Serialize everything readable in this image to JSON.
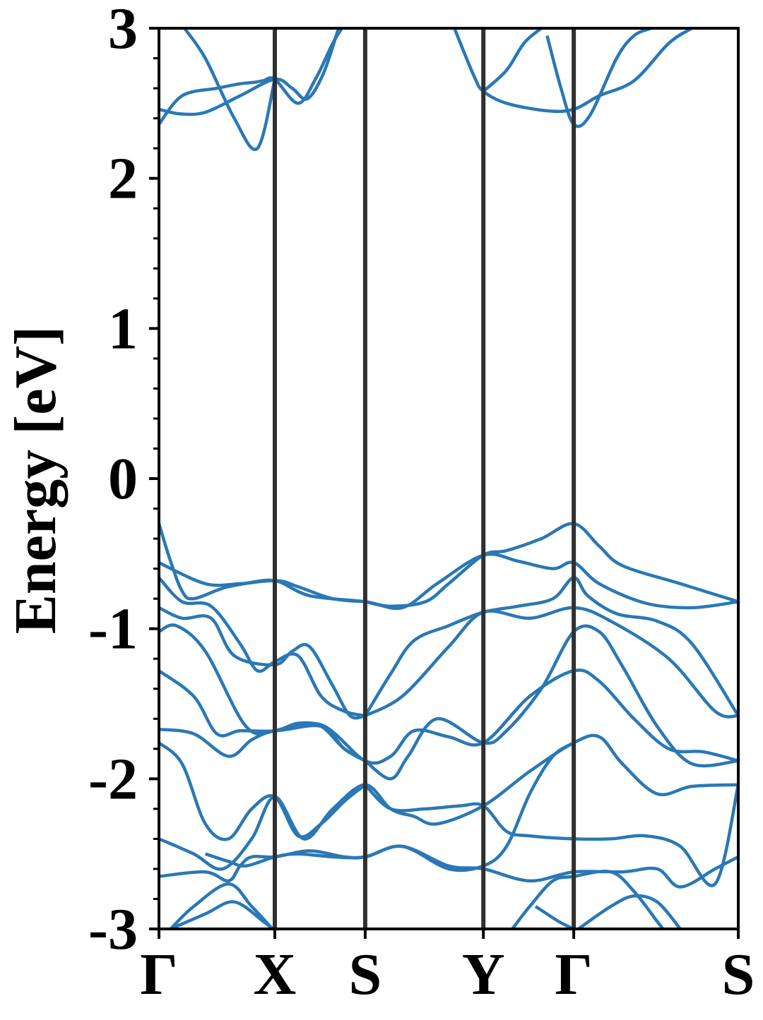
{
  "chart_data": {
    "type": "line",
    "ylabel": "Energy [eV]",
    "xlabel": "",
    "ylim": [
      -3,
      3
    ],
    "yticks": [
      3,
      2,
      1,
      0,
      -1,
      -2,
      -3
    ],
    "ytick_labels": [
      "3",
      "2",
      "1",
      "0",
      "-1",
      "-2",
      "-3"
    ],
    "yminor_step": 0.2,
    "xlim": [
      0,
      5
    ],
    "kpoints": [
      {
        "label": "Γ",
        "x": 0
      },
      {
        "label": "X",
        "x": 1
      },
      {
        "label": "S",
        "x": 1.78
      },
      {
        "label": "Y",
        "x": 2.8
      },
      {
        "label": "Γ",
        "x": 3.58
      },
      {
        "label": "S",
        "x": 5
      }
    ],
    "grid": false,
    "colors": {
      "bands": "#2a78b5",
      "kpath_lines": "#303030",
      "axes": "#000000"
    },
    "bands": [
      [
        [
          0,
          2.36
        ],
        [
          0.2,
          2.55
        ],
        [
          0.5,
          2.6
        ],
        [
          0.7,
          2.63
        ],
        [
          0.82,
          2.64
        ],
        [
          0.9,
          2.65
        ],
        [
          1,
          2.66
        ],
        [
          1.2,
          2.5
        ],
        [
          1.35,
          2.66
        ],
        [
          1.5,
          2.9
        ],
        [
          1.58,
          3.0
        ]
      ],
      [
        [
          0,
          2.46
        ],
        [
          0.18,
          2.43
        ],
        [
          0.4,
          2.44
        ],
        [
          0.7,
          2.55
        ],
        [
          1,
          2.66
        ],
        [
          1.15,
          2.6
        ],
        [
          1.28,
          2.53
        ],
        [
          1.42,
          2.7
        ],
        [
          1.55,
          3.0
        ]
      ],
      [
        [
          0.22,
          3.0
        ],
        [
          0.4,
          2.8
        ],
        [
          0.65,
          2.4
        ],
        [
          0.85,
          2.2
        ],
        [
          1,
          2.66
        ]
      ],
      [
        [
          2.55,
          3.0
        ],
        [
          2.72,
          2.68
        ],
        [
          2.8,
          2.58
        ],
        [
          3.0,
          2.5
        ],
        [
          3.35,
          2.45
        ],
        [
          3.58,
          2.46
        ],
        [
          3.8,
          2.55
        ],
        [
          4.1,
          2.65
        ],
        [
          4.4,
          2.9
        ],
        [
          4.6,
          3.0
        ]
      ],
      [
        [
          2.8,
          2.58
        ],
        [
          3.0,
          2.72
        ],
        [
          3.15,
          2.9
        ],
        [
          3.3,
          3.0
        ]
      ],
      [
        [
          3.35,
          2.95
        ],
        [
          3.47,
          2.6
        ],
        [
          3.58,
          2.36
        ],
        [
          3.72,
          2.42
        ],
        [
          3.95,
          2.8
        ],
        [
          4.1,
          2.95
        ],
        [
          4.25,
          3.0
        ]
      ],
      [
        [
          0,
          -0.3
        ],
        [
          0.1,
          -0.55
        ],
        [
          0.2,
          -0.75
        ],
        [
          0.3,
          -0.8
        ],
        [
          0.6,
          -0.72
        ],
        [
          1,
          -0.68
        ],
        [
          1.2,
          -0.72
        ],
        [
          1.5,
          -0.8
        ],
        [
          1.78,
          -0.82
        ]
      ],
      [
        [
          0,
          -0.56
        ],
        [
          0.4,
          -0.7
        ],
        [
          0.7,
          -0.7
        ],
        [
          1,
          -0.68
        ],
        [
          1.3,
          -0.78
        ],
        [
          1.78,
          -0.82
        ],
        [
          2.1,
          -0.86
        ],
        [
          2.4,
          -0.7
        ],
        [
          2.8,
          -0.51
        ],
        [
          3.1,
          -0.55
        ],
        [
          3.4,
          -0.6
        ],
        [
          3.58,
          -0.56
        ],
        [
          3.8,
          -0.7
        ],
        [
          4.2,
          -0.83
        ],
        [
          4.6,
          -0.86
        ],
        [
          5,
          -0.82
        ]
      ],
      [
        [
          1.78,
          -0.82
        ],
        [
          2.0,
          -0.85
        ],
        [
          2.3,
          -0.82
        ],
        [
          2.5,
          -0.7
        ],
        [
          2.8,
          -0.51
        ],
        [
          3.0,
          -0.48
        ],
        [
          3.3,
          -0.4
        ],
        [
          3.58,
          -0.3
        ],
        [
          3.8,
          -0.45
        ],
        [
          4.0,
          -0.58
        ],
        [
          4.5,
          -0.7
        ],
        [
          5,
          -0.82
        ]
      ],
      [
        [
          0,
          -0.66
        ],
        [
          0.2,
          -0.82
        ],
        [
          0.45,
          -0.85
        ],
        [
          0.7,
          -1.1
        ],
        [
          0.85,
          -1.28
        ],
        [
          1,
          -1.22
        ],
        [
          1.2,
          -1.18
        ],
        [
          1.4,
          -1.45
        ],
        [
          1.6,
          -1.55
        ],
        [
          1.78,
          -1.58
        ]
      ],
      [
        [
          0,
          -0.86
        ],
        [
          0.2,
          -0.93
        ],
        [
          0.45,
          -0.93
        ],
        [
          0.65,
          -1.18
        ],
        [
          1,
          -1.24
        ],
        [
          1.15,
          -1.15
        ],
        [
          1.3,
          -1.12
        ],
        [
          1.5,
          -1.38
        ],
        [
          1.65,
          -1.58
        ],
        [
          1.78,
          -1.58
        ]
      ],
      [
        [
          0,
          -1.02
        ],
        [
          0.15,
          -0.98
        ],
        [
          0.4,
          -1.15
        ],
        [
          0.75,
          -1.65
        ],
        [
          1,
          -1.68
        ],
        [
          1.4,
          -1.65
        ],
        [
          1.6,
          -1.8
        ],
        [
          1.78,
          -1.88
        ]
      ],
      [
        [
          1.78,
          -1.58
        ],
        [
          2.0,
          -1.3
        ],
        [
          2.2,
          -1.08
        ],
        [
          2.5,
          -0.98
        ],
        [
          2.8,
          -0.89
        ],
        [
          3.1,
          -0.85
        ],
        [
          3.4,
          -0.8
        ],
        [
          3.58,
          -0.66
        ],
        [
          3.7,
          -0.78
        ],
        [
          3.95,
          -0.9
        ],
        [
          4.3,
          -0.95
        ],
        [
          4.6,
          -1.1
        ],
        [
          5,
          -1.58
        ]
      ],
      [
        [
          1.78,
          -1.58
        ],
        [
          2.1,
          -1.45
        ],
        [
          2.5,
          -1.12
        ],
        [
          2.8,
          -0.89
        ],
        [
          3.2,
          -0.93
        ],
        [
          3.58,
          -0.86
        ],
        [
          3.9,
          -0.95
        ],
        [
          4.4,
          -1.2
        ],
        [
          4.8,
          -1.55
        ],
        [
          5,
          -1.58
        ]
      ],
      [
        [
          0,
          -1.28
        ],
        [
          0.3,
          -1.45
        ],
        [
          0.5,
          -1.7
        ],
        [
          0.7,
          -1.68
        ],
        [
          1,
          -1.68
        ],
        [
          1.2,
          -1.63
        ],
        [
          1.4,
          -1.65
        ],
        [
          1.6,
          -1.8
        ],
        [
          1.78,
          -1.88
        ]
      ],
      [
        [
          0,
          -1.67
        ],
        [
          0.3,
          -1.7
        ],
        [
          0.6,
          -1.85
        ],
        [
          0.8,
          -1.74
        ],
        [
          1,
          -1.68
        ],
        [
          1.4,
          -1.64
        ],
        [
          1.78,
          -1.88
        ],
        [
          2.0,
          -1.85
        ],
        [
          2.2,
          -1.68
        ],
        [
          2.5,
          -1.72
        ],
        [
          2.8,
          -1.76
        ],
        [
          3.2,
          -1.45
        ],
        [
          3.58,
          -1.28
        ],
        [
          3.8,
          -1.35
        ],
        [
          4.1,
          -1.6
        ],
        [
          4.4,
          -1.8
        ],
        [
          4.7,
          -1.82
        ],
        [
          5,
          -1.88
        ]
      ],
      [
        [
          1.78,
          -1.88
        ],
        [
          2.0,
          -2.0
        ],
        [
          2.15,
          -1.85
        ],
        [
          2.4,
          -1.6
        ],
        [
          2.8,
          -1.76
        ],
        [
          3.0,
          -1.68
        ],
        [
          3.3,
          -1.4
        ],
        [
          3.58,
          -1.02
        ],
        [
          3.8,
          -1.02
        ],
        [
          4.0,
          -1.25
        ],
        [
          4.3,
          -1.65
        ],
        [
          4.6,
          -1.9
        ],
        [
          5,
          -1.88
        ]
      ],
      [
        [
          0,
          -1.76
        ],
        [
          0.2,
          -1.9
        ],
        [
          0.4,
          -2.3
        ],
        [
          0.6,
          -2.4
        ],
        [
          0.8,
          -2.2
        ],
        [
          1,
          -2.12
        ],
        [
          1.2,
          -2.38
        ],
        [
          1.4,
          -2.3
        ],
        [
          1.6,
          -2.15
        ],
        [
          1.78,
          -2.04
        ]
      ],
      [
        [
          0,
          -2.4
        ],
        [
          0.3,
          -2.5
        ],
        [
          0.55,
          -2.6
        ],
        [
          0.8,
          -2.4
        ],
        [
          1,
          -2.12
        ],
        [
          1.25,
          -2.4
        ],
        [
          1.5,
          -2.2
        ],
        [
          1.78,
          -2.04
        ],
        [
          2.0,
          -2.2
        ],
        [
          2.2,
          -2.25
        ],
        [
          2.4,
          -2.3
        ],
        [
          2.8,
          -2.18
        ],
        [
          3.2,
          -1.95
        ],
        [
          3.58,
          -1.76
        ],
        [
          3.8,
          -1.72
        ],
        [
          4.0,
          -1.9
        ],
        [
          4.3,
          -2.1
        ],
        [
          4.6,
          -2.05
        ],
        [
          5,
          -2.04
        ]
      ],
      [
        [
          1.78,
          -2.04
        ],
        [
          2.0,
          -2.2
        ],
        [
          2.3,
          -2.2
        ],
        [
          2.6,
          -2.18
        ],
        [
          2.8,
          -2.18
        ],
        [
          3.0,
          -2.35
        ],
        [
          3.2,
          -2.38
        ],
        [
          3.58,
          -2.4
        ],
        [
          3.9,
          -2.4
        ],
        [
          4.2,
          -2.38
        ],
        [
          4.5,
          -2.45
        ],
        [
          4.8,
          -2.7
        ],
        [
          5,
          -2.04
        ]
      ],
      [
        [
          0,
          -2.65
        ],
        [
          0.4,
          -2.62
        ],
        [
          0.6,
          -2.68
        ],
        [
          0.7,
          -2.58
        ],
        [
          0.8,
          -2.52
        ],
        [
          1,
          -2.52
        ],
        [
          1.3,
          -2.48
        ],
        [
          1.6,
          -2.52
        ],
        [
          1.78,
          -2.52
        ],
        [
          2.1,
          -2.45
        ],
        [
          2.5,
          -2.58
        ],
        [
          2.8,
          -2.6
        ],
        [
          3.2,
          -2.68
        ],
        [
          3.58,
          -2.62
        ],
        [
          4.0,
          -2.62
        ],
        [
          4.3,
          -2.6
        ],
        [
          4.5,
          -2.72
        ],
        [
          4.8,
          -2.6
        ],
        [
          5,
          -2.52
        ]
      ],
      [
        [
          0.4,
          -2.5
        ],
        [
          0.6,
          -2.55
        ],
        [
          0.75,
          -2.58
        ],
        [
          1,
          -2.52
        ],
        [
          1.2,
          -2.5
        ],
        [
          1.5,
          -2.52
        ],
        [
          1.78,
          -2.52
        ],
        [
          2.1,
          -2.45
        ],
        [
          2.5,
          -2.6
        ],
        [
          2.8,
          -2.58
        ],
        [
          3.0,
          -2.45
        ],
        [
          3.2,
          -2.1
        ],
        [
          3.4,
          -1.85
        ],
        [
          3.58,
          -1.76
        ]
      ],
      [
        [
          0.1,
          -3.0
        ],
        [
          0.3,
          -2.85
        ],
        [
          0.6,
          -2.7
        ],
        [
          0.8,
          -2.85
        ],
        [
          0.98,
          -3.0
        ]
      ],
      [
        [
          0.1,
          -3.0
        ],
        [
          0.4,
          -2.9
        ],
        [
          0.65,
          -2.82
        ],
        [
          0.9,
          -2.95
        ],
        [
          0.98,
          -3.0
        ]
      ],
      [
        [
          3.05,
          -3.0
        ],
        [
          3.2,
          -2.85
        ],
        [
          3.4,
          -2.68
        ],
        [
          3.58,
          -2.65
        ],
        [
          3.9,
          -2.62
        ],
        [
          4.1,
          -2.75
        ],
        [
          4.3,
          -2.95
        ],
        [
          4.35,
          -3.0
        ]
      ],
      [
        [
          3.25,
          -2.85
        ],
        [
          3.45,
          -2.95
        ],
        [
          3.58,
          -3.0
        ]
      ],
      [
        [
          3.62,
          -3.0
        ],
        [
          3.9,
          -2.85
        ],
        [
          4.1,
          -2.78
        ],
        [
          4.3,
          -2.82
        ],
        [
          4.5,
          -3.0
        ]
      ]
    ]
  }
}
